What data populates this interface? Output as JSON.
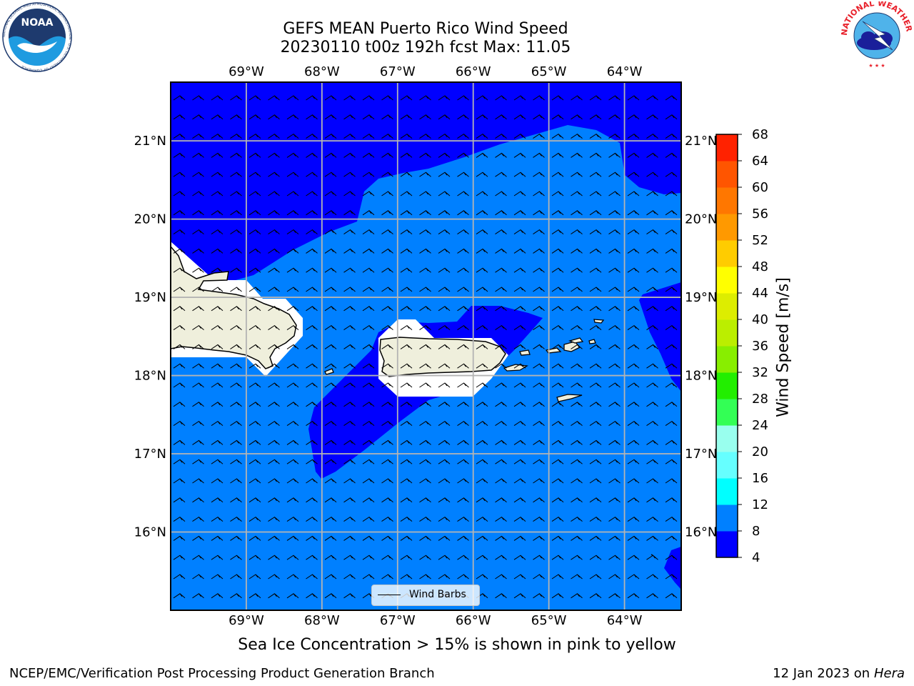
{
  "title": {
    "line1": "GEFS MEAN Puerto Rico Wind Speed",
    "line2": "20230110 t00z 192h fcst   Max: 11.05"
  },
  "logos": {
    "noaa": {
      "text": "NOAA",
      "ring_text": "NATIONAL OCEANIC AND ATMOSPHERIC ADMINISTRATION · U.S. DEPARTMENT OF COMMERCE"
    },
    "nws": {
      "ring_text": "NATIONAL WEATHER SERVICE"
    }
  },
  "map": {
    "lon_ticks": [
      "69°W",
      "68°W",
      "67°W",
      "66°W",
      "65°W",
      "64°W"
    ],
    "lat_ticks": [
      "21°N",
      "20°N",
      "19°N",
      "18°N",
      "17°N",
      "16°N"
    ],
    "lon_values": [
      -69,
      -68,
      -67,
      -66,
      -65,
      -64
    ],
    "lat_values": [
      21,
      20,
      19,
      18,
      17,
      16
    ],
    "extent": {
      "lon_min": -70.0,
      "lon_max": -63.25,
      "lat_min": 15.0,
      "lat_max": 21.75
    },
    "legend_label": "Wind Barbs"
  },
  "colorbar": {
    "label": "Wind Speed [m/s]",
    "ticks": [
      "4",
      "8",
      "12",
      "16",
      "20",
      "24",
      "28",
      "32",
      "36",
      "40",
      "44",
      "48",
      "52",
      "56",
      "60",
      "64",
      "68"
    ],
    "colors": [
      "#0000ff",
      "#0080ff",
      "#00ffff",
      "#66ffff",
      "#99ffee",
      "#33ff55",
      "#22ee00",
      "#88ee00",
      "#bbee00",
      "#dded00",
      "#ffff00",
      "#ffcc00",
      "#ff9900",
      "#ff7700",
      "#ff5500",
      "#ff2200"
    ]
  },
  "field_colors": {
    "band_4_8": "#0000ff",
    "band_8_12": "#0080ff",
    "land": "#efefdc",
    "masked": "#ffffff"
  },
  "caption": "Sea Ice Concentration > 15% is shown in pink to yellow",
  "footer": {
    "left": "NCEP/EMC/Verification Post Processing Product Generation Branch",
    "right_prefix": "12 Jan 2023 on ",
    "right_machine": "Hera"
  }
}
